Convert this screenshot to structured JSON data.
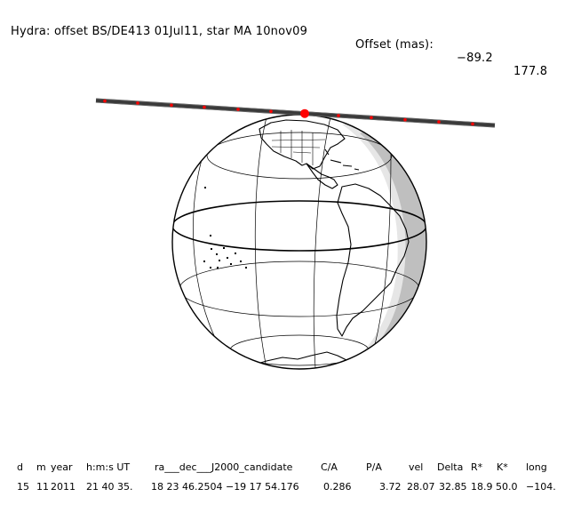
{
  "title": {
    "prefix": "Hydra: offset BS/DE413 01Jul11, star MA 10nov09",
    "offset_label": "Offset (mas):",
    "offset_ra": "−89.2",
    "offset_dec": "177.8"
  },
  "table": {
    "headers": [
      "d",
      "m",
      "year",
      "h:m:s UT",
      "ra___dec___J2000_candidate",
      "C/A",
      "P/A",
      "vel",
      "Delta",
      "R*",
      "K*",
      "long"
    ],
    "values": [
      "15",
      "11",
      "2011",
      "21 40 35.",
      "18 23 46.2504 −19 17  54.176",
      "0.286",
      "3.72",
      "28.07",
      "32.85",
      "18.9",
      "50.0",
      "−104."
    ]
  },
  "colors": {
    "track": "#3a3a3a",
    "dot": "#ff0000",
    "night": "#bfbfbf",
    "twilight": "#e6e6e6",
    "lines": "#000000"
  }
}
